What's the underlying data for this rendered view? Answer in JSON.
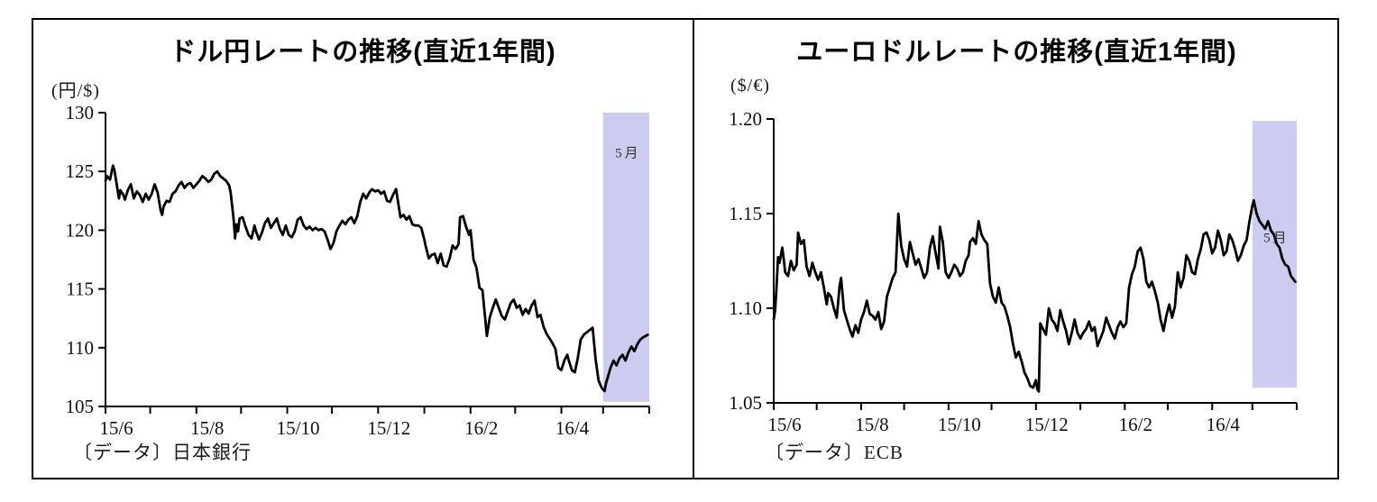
{
  "chart_data": [
    {
      "type": "line",
      "title": "ドル円レートの推移(直近1年間)",
      "unit_label": "(円/$)",
      "source_label": "〔データ〕日本銀行",
      "series_name": "ドル円レート",
      "ylim": [
        105,
        130
      ],
      "ytick_values": [
        105,
        110,
        115,
        120,
        125,
        130
      ],
      "ytick_labels": [
        "105",
        "110",
        "115",
        "120",
        "125",
        "130"
      ],
      "x_range_days": [
        0,
        365
      ],
      "xtick_days": [
        0,
        61,
        122,
        183,
        245,
        306
      ],
      "xtick_labels": [
        "15/6",
        "15/8",
        "15/10",
        "15/12",
        "16/2",
        "16/4"
      ],
      "minor_tick_days": [
        30,
        91,
        152,
        214,
        275,
        334,
        365
      ],
      "grid": false,
      "legend": "none",
      "line_color": "#000000",
      "highlight_band": {
        "label": "5月",
        "from_day": 334,
        "to_day": 365,
        "value_top": 130,
        "value_bottom": 105.4,
        "label_value": 126.2,
        "color": "#CCCCF0",
        "label_color": "#333333"
      },
      "x_days": [
        0,
        1,
        3,
        5,
        6,
        7,
        9,
        10,
        12,
        13,
        15,
        17,
        19,
        21,
        23,
        25,
        27,
        29,
        31,
        33,
        35,
        37,
        38,
        39,
        41,
        43,
        45,
        47,
        49,
        51,
        53,
        55,
        57,
        59,
        61,
        63,
        65,
        67,
        69,
        71,
        73,
        75,
        77,
        79,
        81,
        83,
        84,
        85,
        86,
        87,
        88,
        89,
        90,
        92,
        94,
        96,
        98,
        100,
        101,
        103,
        105,
        107,
        109,
        111,
        113,
        115,
        117,
        119,
        121,
        123,
        125,
        127,
        129,
        131,
        133,
        135,
        137,
        139,
        141,
        143,
        145,
        147,
        149,
        151,
        153,
        155,
        157,
        159,
        161,
        163,
        165,
        167,
        169,
        171,
        173,
        175,
        177,
        179,
        181,
        183,
        185,
        187,
        189,
        191,
        193,
        195,
        196,
        198,
        200,
        202,
        204,
        206,
        208,
        210,
        212,
        214,
        215,
        217,
        219,
        221,
        223,
        225,
        227,
        229,
        231,
        233,
        235,
        237,
        238,
        240,
        242,
        244,
        245,
        247,
        249,
        251,
        253,
        255,
        256,
        258,
        260,
        262,
        264,
        266,
        268,
        270,
        272,
        274,
        276,
        278,
        280,
        282,
        284,
        286,
        288,
        290,
        292,
        294,
        296,
        298,
        300,
        302,
        304,
        306,
        308,
        310,
        311,
        313,
        315,
        317,
        319,
        321,
        323,
        325,
        327,
        329,
        331,
        333,
        335,
        336,
        337,
        339,
        341,
        343,
        345,
        347,
        349,
        351,
        353,
        355,
        357,
        359,
        361,
        364
      ],
      "values": [
        124.2,
        124.6,
        124.3,
        125.5,
        125.1,
        124.3,
        122.7,
        123.4,
        123.0,
        122.6,
        123.4,
        123.9,
        122.7,
        123.3,
        123.0,
        122.4,
        123.1,
        122.6,
        123.1,
        123.9,
        123.2,
        121.7,
        121.3,
        122.0,
        122.5,
        122.4,
        123.1,
        123.3,
        123.8,
        124.1,
        123.6,
        123.9,
        124.0,
        123.6,
        123.9,
        124.2,
        124.6,
        124.4,
        124.1,
        124.3,
        124.8,
        125.0,
        124.6,
        124.4,
        124.2,
        123.8,
        123.2,
        122.1,
        120.9,
        119.3,
        120.5,
        119.9,
        121.0,
        121.1,
        120.3,
        119.6,
        119.3,
        120.4,
        119.9,
        119.2,
        119.8,
        120.6,
        121.0,
        120.2,
        120.6,
        121.0,
        120.1,
        119.6,
        120.4,
        119.6,
        119.4,
        119.9,
        120.9,
        121.1,
        120.4,
        120.1,
        120.3,
        120.0,
        120.2,
        120.0,
        120.1,
        119.9,
        119.2,
        118.4,
        118.9,
        119.9,
        120.4,
        120.8,
        120.5,
        120.9,
        121.1,
        120.6,
        121.2,
        122.4,
        123.1,
        122.7,
        123.2,
        123.5,
        123.3,
        123.4,
        123.1,
        123.3,
        122.5,
        122.4,
        123.0,
        123.5,
        122.7,
        121.1,
        121.3,
        120.9,
        121.2,
        120.5,
        120.4,
        120.4,
        120.2,
        119.2,
        118.6,
        117.6,
        117.9,
        118.0,
        117.2,
        118.0,
        117.0,
        116.9,
        117.6,
        118.7,
        118.4,
        118.8,
        121.1,
        121.2,
        120.3,
        119.6,
        120.0,
        117.5,
        116.8,
        115.1,
        114.9,
        112.3,
        111.0,
        112.6,
        113.4,
        114.1,
        113.4,
        112.7,
        112.4,
        113.1,
        113.8,
        114.1,
        113.4,
        113.6,
        112.8,
        113.3,
        112.9,
        113.6,
        114.0,
        112.6,
        112.8,
        111.8,
        111.2,
        110.8,
        110.4,
        109.9,
        108.3,
        108.1,
        108.9,
        109.4,
        108.9,
        108.1,
        107.9,
        109.1,
        110.7,
        111.1,
        111.3,
        111.5,
        111.7,
        109.0,
        107.2,
        106.6,
        106.3,
        107.0,
        107.4,
        108.3,
        108.9,
        108.5,
        109.1,
        109.4,
        108.9,
        109.6,
        110.1,
        109.7,
        110.3,
        110.7,
        110.9,
        111.1
      ]
    },
    {
      "type": "line",
      "title": "ユーロドルレートの推移(直近1年間)",
      "unit_label": "($/€)",
      "source_label": "〔データ〕ECB",
      "series_name": "ユーロドルレート",
      "ylim": [
        1.05,
        1.2
      ],
      "ytick_values": [
        1.05,
        1.1,
        1.15,
        1.2
      ],
      "ytick_labels": [
        "1.05",
        "1.10",
        "1.15",
        "1.20"
      ],
      "x_range_days": [
        0,
        365
      ],
      "xtick_days": [
        0,
        61,
        122,
        183,
        245,
        306
      ],
      "xtick_labels": [
        "15/6",
        "15/8",
        "15/10",
        "15/12",
        "16/2",
        "16/4"
      ],
      "minor_tick_days": [
        30,
        91,
        152,
        214,
        275,
        334,
        365
      ],
      "grid": false,
      "legend": "none",
      "line_color": "#000000",
      "highlight_band": {
        "label": "5月",
        "from_day": 334,
        "to_day": 365,
        "value_top": 1.199,
        "value_bottom": 1.058,
        "label_value": 1.135,
        "color": "#CCCCF0",
        "label_color": "#333333"
      },
      "x_days": [
        0,
        1,
        2,
        3,
        4,
        6,
        7,
        8,
        10,
        12,
        14,
        16,
        17,
        19,
        21,
        23,
        25,
        27,
        29,
        31,
        33,
        35,
        37,
        38,
        40,
        42,
        44,
        46,
        47,
        49,
        51,
        53,
        55,
        57,
        59,
        61,
        63,
        65,
        67,
        69,
        71,
        73,
        75,
        77,
        79,
        81,
        83,
        85,
        87,
        88,
        89,
        91,
        93,
        95,
        97,
        99,
        101,
        103,
        105,
        107,
        109,
        111,
        113,
        115,
        116,
        118,
        120,
        122,
        124,
        126,
        128,
        130,
        132,
        134,
        136,
        137,
        139,
        141,
        143,
        145,
        147,
        149,
        151,
        153,
        155,
        157,
        159,
        161,
        163,
        165,
        167,
        169,
        171,
        173,
        175,
        177,
        179,
        181,
        183,
        184,
        185,
        186,
        188,
        190,
        192,
        194,
        196,
        198,
        200,
        202,
        204,
        206,
        208,
        210,
        212,
        214,
        216,
        218,
        220,
        222,
        224,
        226,
        228,
        230,
        232,
        234,
        236,
        238,
        240,
        242,
        244,
        246,
        248,
        250,
        252,
        254,
        256,
        258,
        260,
        262,
        264,
        266,
        268,
        270,
        272,
        274,
        276,
        278,
        280,
        282,
        284,
        286,
        288,
        290,
        292,
        294,
        296,
        298,
        300,
        302,
        304,
        306,
        308,
        310,
        312,
        314,
        316,
        318,
        320,
        322,
        324,
        326,
        328,
        330,
        332,
        334,
        335,
        337,
        339,
        341,
        343,
        345,
        347,
        349,
        351,
        353,
        355,
        357,
        359,
        361,
        364
      ],
      "values": [
        1.094,
        1.099,
        1.112,
        1.127,
        1.124,
        1.132,
        1.126,
        1.119,
        1.117,
        1.125,
        1.12,
        1.123,
        1.14,
        1.134,
        1.136,
        1.122,
        1.117,
        1.124,
        1.119,
        1.115,
        1.119,
        1.111,
        1.102,
        1.108,
        1.106,
        1.1,
        1.095,
        1.112,
        1.116,
        1.099,
        1.094,
        1.089,
        1.085,
        1.091,
        1.087,
        1.094,
        1.098,
        1.104,
        1.097,
        1.096,
        1.094,
        1.098,
        1.089,
        1.093,
        1.106,
        1.111,
        1.116,
        1.119,
        1.15,
        1.141,
        1.133,
        1.126,
        1.122,
        1.135,
        1.129,
        1.123,
        1.126,
        1.121,
        1.116,
        1.119,
        1.132,
        1.138,
        1.129,
        1.121,
        1.143,
        1.135,
        1.119,
        1.116,
        1.119,
        1.123,
        1.121,
        1.117,
        1.119,
        1.125,
        1.128,
        1.135,
        1.137,
        1.134,
        1.146,
        1.139,
        1.136,
        1.134,
        1.113,
        1.106,
        1.103,
        1.111,
        1.103,
        1.101,
        1.096,
        1.09,
        1.081,
        1.074,
        1.077,
        1.072,
        1.066,
        1.063,
        1.059,
        1.058,
        1.062,
        1.057,
        1.056,
        1.092,
        1.089,
        1.086,
        1.1,
        1.094,
        1.092,
        1.088,
        1.099,
        1.093,
        1.088,
        1.081,
        1.087,
        1.094,
        1.087,
        1.084,
        1.087,
        1.089,
        1.093,
        1.088,
        1.09,
        1.08,
        1.084,
        1.088,
        1.095,
        1.091,
        1.087,
        1.084,
        1.09,
        1.093,
        1.09,
        1.092,
        1.111,
        1.118,
        1.122,
        1.13,
        1.132,
        1.126,
        1.114,
        1.111,
        1.114,
        1.109,
        1.103,
        1.094,
        1.088,
        1.096,
        1.102,
        1.095,
        1.101,
        1.119,
        1.111,
        1.116,
        1.128,
        1.125,
        1.119,
        1.118,
        1.126,
        1.131,
        1.139,
        1.14,
        1.136,
        1.129,
        1.132,
        1.141,
        1.136,
        1.128,
        1.13,
        1.139,
        1.136,
        1.131,
        1.125,
        1.128,
        1.133,
        1.136,
        1.146,
        1.154,
        1.157,
        1.15,
        1.146,
        1.144,
        1.142,
        1.146,
        1.141,
        1.139,
        1.134,
        1.132,
        1.126,
        1.123,
        1.122,
        1.117,
        1.114
      ]
    }
  ]
}
